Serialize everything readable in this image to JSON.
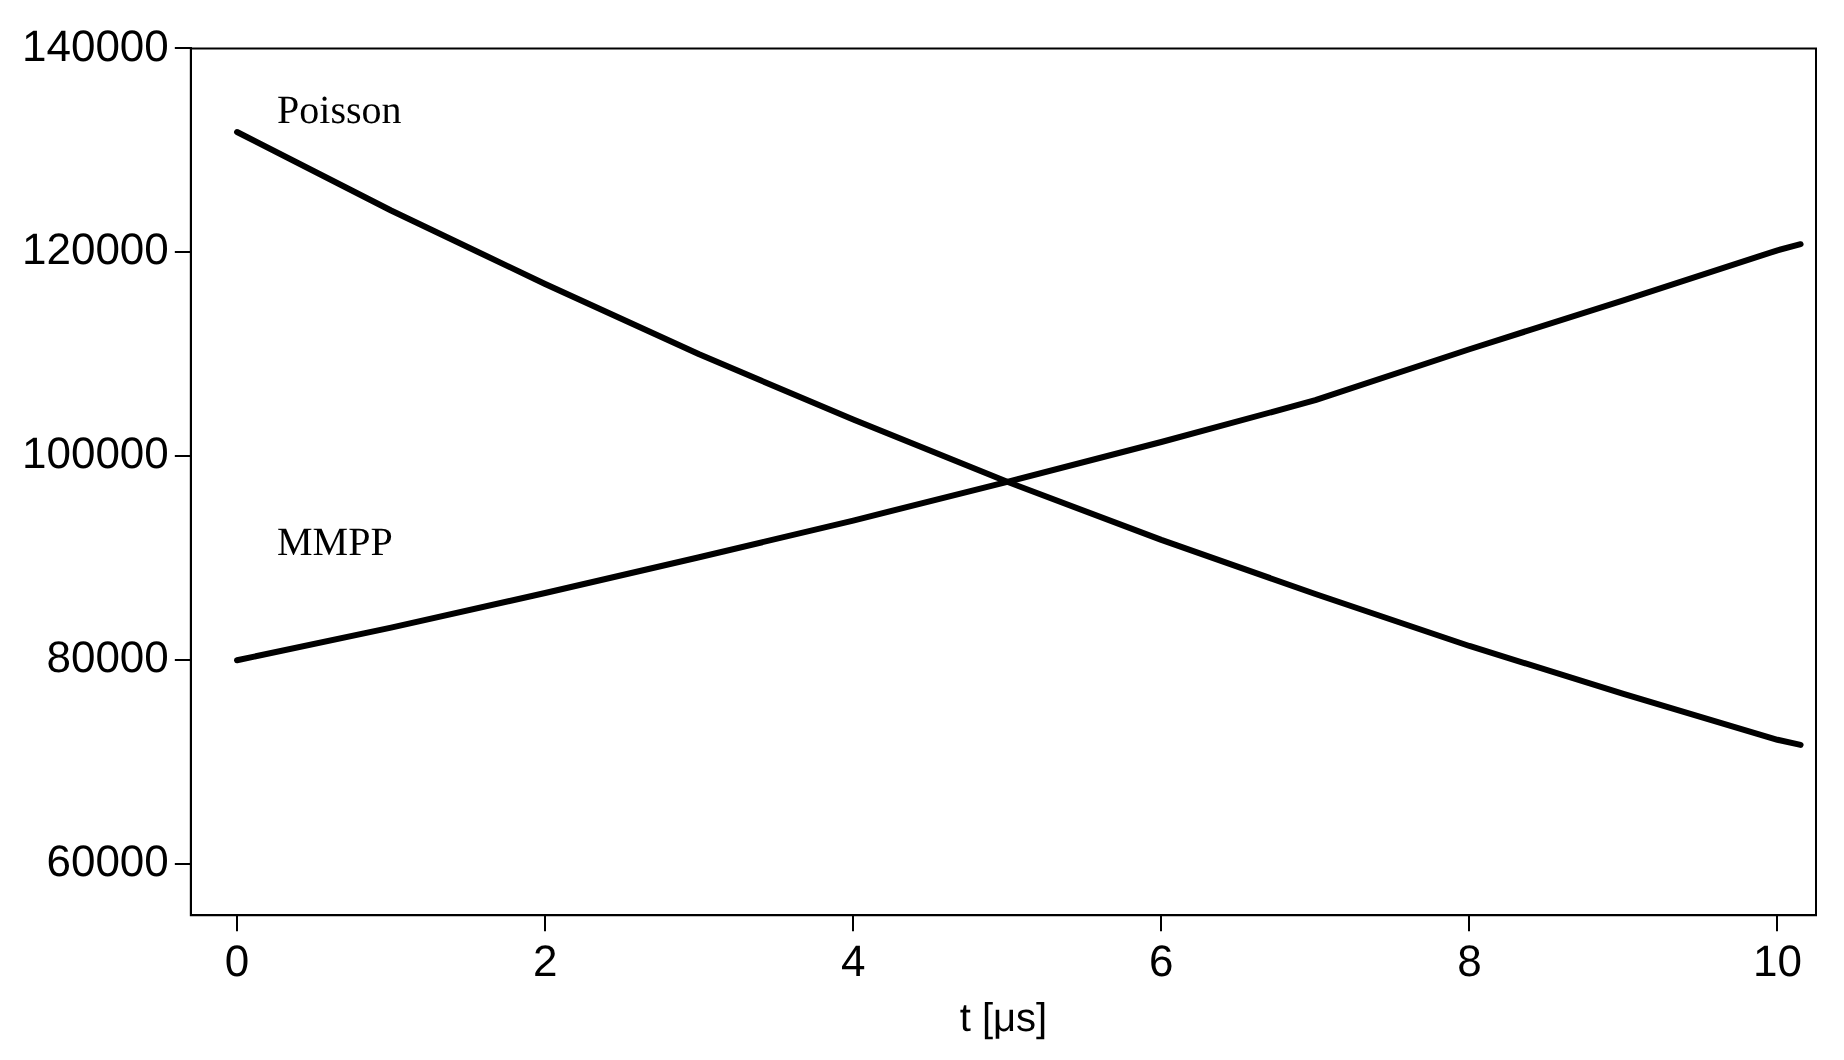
{
  "chart_data": {
    "type": "line",
    "xlabel": "t [μs]",
    "x": [
      0,
      1,
      2,
      3,
      4,
      5,
      6,
      7,
      8,
      9,
      10,
      10.15
    ],
    "series": [
      {
        "name": "Poisson",
        "color": "#000000",
        "values": [
          131800,
          124100,
          116900,
          110000,
          103600,
          97500,
          91800,
          86500,
          81400,
          76700,
          72200,
          71700
        ]
      },
      {
        "name": "MMPP",
        "color": "#000000",
        "values": [
          80000,
          83200,
          86600,
          90100,
          93700,
          97500,
          101400,
          105500,
          110500,
          115300,
          120200,
          120800
        ]
      }
    ],
    "xlim": [
      -0.3,
      10.25
    ],
    "ylim": [
      55000,
      140000
    ],
    "xticks": [
      0,
      2,
      4,
      6,
      8,
      10
    ],
    "yticks": [
      60000,
      80000,
      100000,
      120000,
      140000
    ],
    "grid": false,
    "legend": false,
    "marker": "none",
    "line_style": "solid"
  }
}
